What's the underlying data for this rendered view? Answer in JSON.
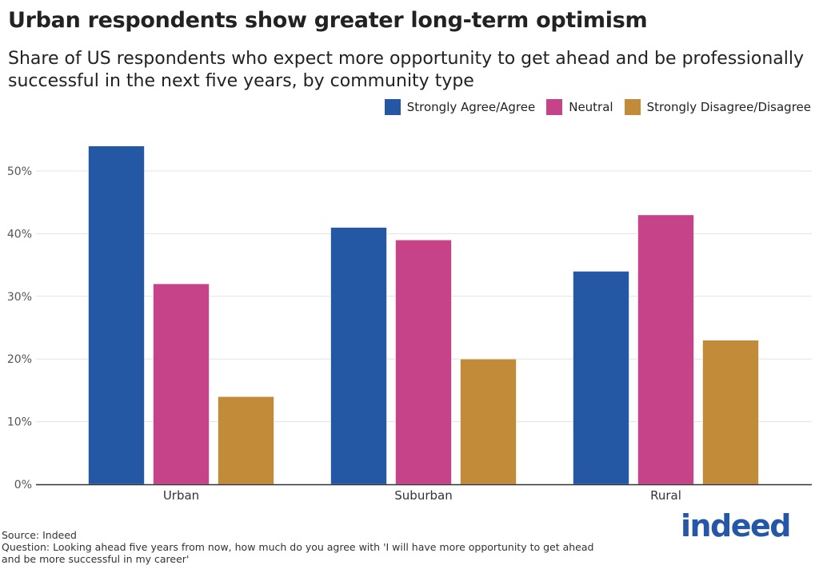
{
  "chart_data": {
    "type": "bar",
    "title": "Urban respondents show greater long-term optimism",
    "subtitle": "Share of US respondents who expect more opportunity to get ahead and be professionally successful in the next five years, by community type",
    "categories": [
      "Urban",
      "Suburban",
      "Rural"
    ],
    "series": [
      {
        "name": "Strongly Agree/Agree",
        "values": [
          54,
          41,
          34
        ],
        "color": "#2457a4"
      },
      {
        "name": "Neutral",
        "values": [
          32,
          39,
          43
        ],
        "color": "#c64289"
      },
      {
        "name": "Strongly Disagree/Disagree",
        "values": [
          14,
          20,
          23
        ],
        "color": "#c18b39"
      }
    ],
    "ylim": [
      0,
      55
    ],
    "yticks": [
      "0%",
      "10%",
      "20%",
      "30%",
      "40%",
      "50%"
    ],
    "ytick_values": [
      0,
      10,
      20,
      30,
      40,
      50
    ],
    "grid": true,
    "legend": "top-right",
    "xlabel": "",
    "ylabel": ""
  },
  "notes": {
    "source": "Source: Indeed",
    "question": "Question: Looking ahead five years from now, how much do you agree with 'I will have more opportunity to get ahead and be more successful in my career'"
  },
  "logo": "indeed"
}
